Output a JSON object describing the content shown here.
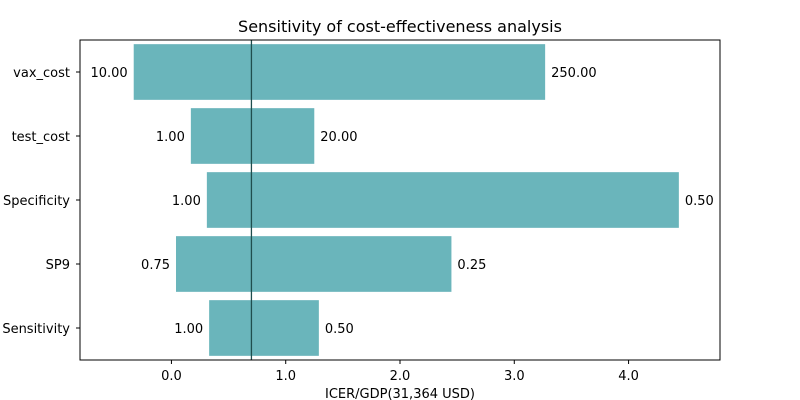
{
  "chart_data": {
    "type": "bar",
    "orientation": "horizontal",
    "chart_style": "tornado",
    "title": "Sensitivity of cost-effectiveness analysis",
    "xlabel": "ICER/GDP(31,364 USD)",
    "ylabel": "",
    "xlim": [
      -0.8,
      4.8
    ],
    "xticks": [
      "0.0",
      "1.0",
      "2.0",
      "3.0",
      "4.0"
    ],
    "baseline": 0.7,
    "categories": [
      "vax_cost",
      "test_cost",
      "Specificity",
      "SP9",
      "Sensitivity"
    ],
    "bars": [
      {
        "category": "vax_cost",
        "low_value": -0.33,
        "high_value": 3.27,
        "low_label": "10.00",
        "high_label": "250.00"
      },
      {
        "category": "test_cost",
        "low_value": 0.17,
        "high_value": 1.25,
        "low_label": "1.00",
        "high_label": "20.00"
      },
      {
        "category": "Specificity",
        "low_value": 0.31,
        "high_value": 4.44,
        "low_label": "1.00",
        "high_label": "0.50"
      },
      {
        "category": "SP9",
        "low_value": 0.04,
        "high_value": 2.45,
        "low_label": "0.75",
        "high_label": "0.25"
      },
      {
        "category": "Sensitivity",
        "low_value": 0.33,
        "high_value": 1.29,
        "low_label": "1.00",
        "high_label": "0.50"
      }
    ],
    "bar_color": "#6ab5bb",
    "baseline_color": "#1f4e4e",
    "grid": false,
    "legend": "none"
  }
}
